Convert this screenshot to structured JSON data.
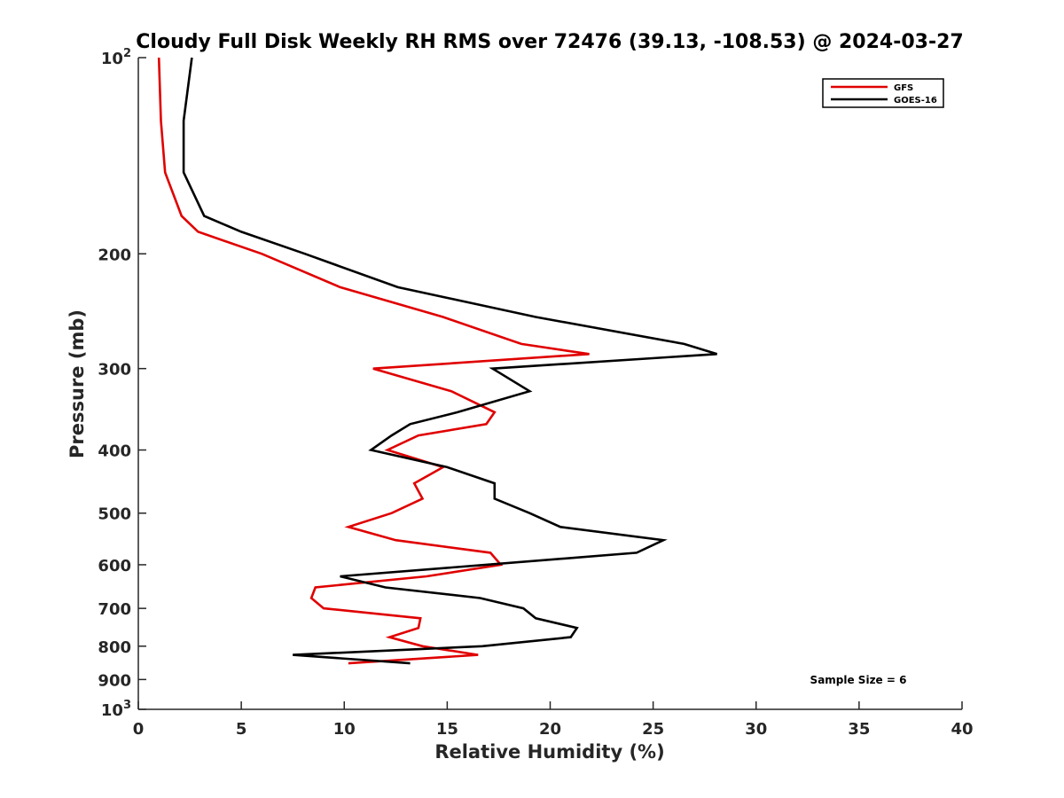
{
  "chart_data": {
    "type": "line",
    "title": "Cloudy Full Disk Weekly RH RMS over 72476 (39.13, -108.53) @ 2024-03-27",
    "xlabel": "Relative Humidity (%)",
    "ylabel": "Pressure (mb)",
    "xlim": [
      0,
      40
    ],
    "ylim": [
      100,
      1000
    ],
    "y_scale": "log",
    "y_reversed": true,
    "xticks": [
      0,
      5,
      10,
      15,
      20,
      25,
      30,
      35,
      40
    ],
    "xtick_labels": [
      "0",
      "5",
      "10",
      "15",
      "20",
      "25",
      "30",
      "35",
      "40"
    ],
    "yticks": [
      100,
      200,
      300,
      400,
      500,
      600,
      700,
      800,
      900,
      1000
    ],
    "ytick_labels": [
      {
        "base": "10",
        "exp": "2"
      },
      {
        "base": "200",
        "exp": ""
      },
      {
        "base": "300",
        "exp": ""
      },
      {
        "base": "400",
        "exp": ""
      },
      {
        "base": "500",
        "exp": ""
      },
      {
        "base": "600",
        "exp": ""
      },
      {
        "base": "700",
        "exp": ""
      },
      {
        "base": "800",
        "exp": ""
      },
      {
        "base": "900",
        "exp": ""
      },
      {
        "base": "10",
        "exp": "3"
      }
    ],
    "grid": false,
    "legend_position": "top-right",
    "annotation": "Sample Size = 6",
    "series": [
      {
        "name": "GFS",
        "color": "#e00000",
        "pressure": [
          100,
          125,
          150,
          175,
          185,
          200,
          225,
          250,
          275,
          285,
          300,
          325,
          350,
          365,
          380,
          400,
          425,
          450,
          475,
          500,
          525,
          550,
          575,
          600,
          625,
          650,
          675,
          700,
          725,
          750,
          775,
          800,
          825,
          850
        ],
        "values": [
          1.0,
          1.1,
          1.3,
          2.1,
          2.9,
          6.0,
          9.8,
          14.8,
          18.6,
          21.9,
          11.4,
          15.2,
          17.3,
          16.9,
          13.6,
          12.1,
          14.8,
          13.4,
          13.8,
          12.3,
          10.2,
          12.5,
          17.1,
          17.6,
          14.0,
          8.6,
          8.4,
          9.0,
          13.7,
          13.6,
          12.2,
          13.8,
          16.5,
          10.2
        ]
      },
      {
        "name": "GOES-16",
        "color": "#000000",
        "pressure": [
          100,
          125,
          150,
          175,
          185,
          200,
          225,
          250,
          275,
          285,
          300,
          325,
          350,
          365,
          380,
          400,
          425,
          450,
          475,
          500,
          525,
          550,
          575,
          600,
          625,
          650,
          675,
          700,
          725,
          750,
          775,
          800,
          825,
          850
        ],
        "values": [
          2.6,
          2.2,
          2.2,
          3.2,
          5.0,
          8.1,
          12.6,
          19.3,
          26.5,
          28.1,
          17.2,
          19.0,
          15.5,
          13.2,
          12.3,
          11.3,
          15.0,
          17.3,
          17.3,
          19.0,
          20.5,
          25.5,
          24.2,
          16.9,
          9.8,
          12.0,
          16.6,
          18.7,
          19.3,
          21.3,
          21.0,
          16.7,
          7.5,
          13.2
        ]
      }
    ]
  }
}
